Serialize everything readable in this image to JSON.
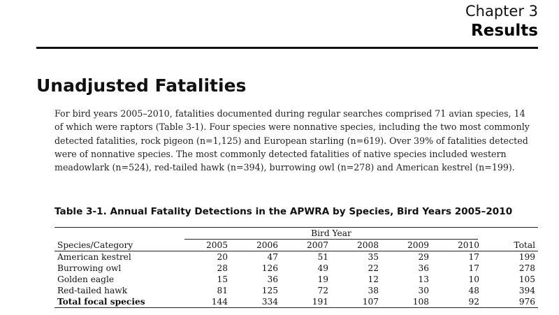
{
  "header": {
    "chapter": "Chapter 3",
    "title": "Results"
  },
  "section": {
    "heading": "Unadjusted Fatalities",
    "paragraph": "For bird years 2005–2010, fatalities documented during regular searches comprised 71 avian species, 14 of which were raptors (Table 3-1). Four species were nonnative species, including the two most commonly detected fatalities, rock pigeon (n=1,125) and European starling (n=619). Over 39% of fatalities detected were of nonnative species. The most commonly detected fatalities of native species included western meadowlark (n=524), red-tailed hawk (n=394), burrowing owl (n=278) and American kestrel (n=199)."
  },
  "table": {
    "caption": "Table 3-1. Annual Fatality Detections in the APWRA by Species, Bird Years 2005–2010",
    "group_header": "Bird Year",
    "columns": [
      "Species/Category",
      "2005",
      "2006",
      "2007",
      "2008",
      "2009",
      "2010",
      "Total"
    ],
    "rows": [
      [
        "American kestrel",
        "20",
        "47",
        "51",
        "35",
        "29",
        "17",
        "199"
      ],
      [
        "Burrowing owl",
        "28",
        "126",
        "49",
        "22",
        "36",
        "17",
        "278"
      ],
      [
        "Golden eagle",
        "15",
        "36",
        "19",
        "12",
        "13",
        "10",
        "105"
      ],
      [
        "Red-tailed hawk",
        "81",
        "125",
        "72",
        "38",
        "30",
        "48",
        "394"
      ],
      [
        "Total focal species",
        "144",
        "334",
        "191",
        "107",
        "108",
        "92",
        "976"
      ]
    ]
  }
}
